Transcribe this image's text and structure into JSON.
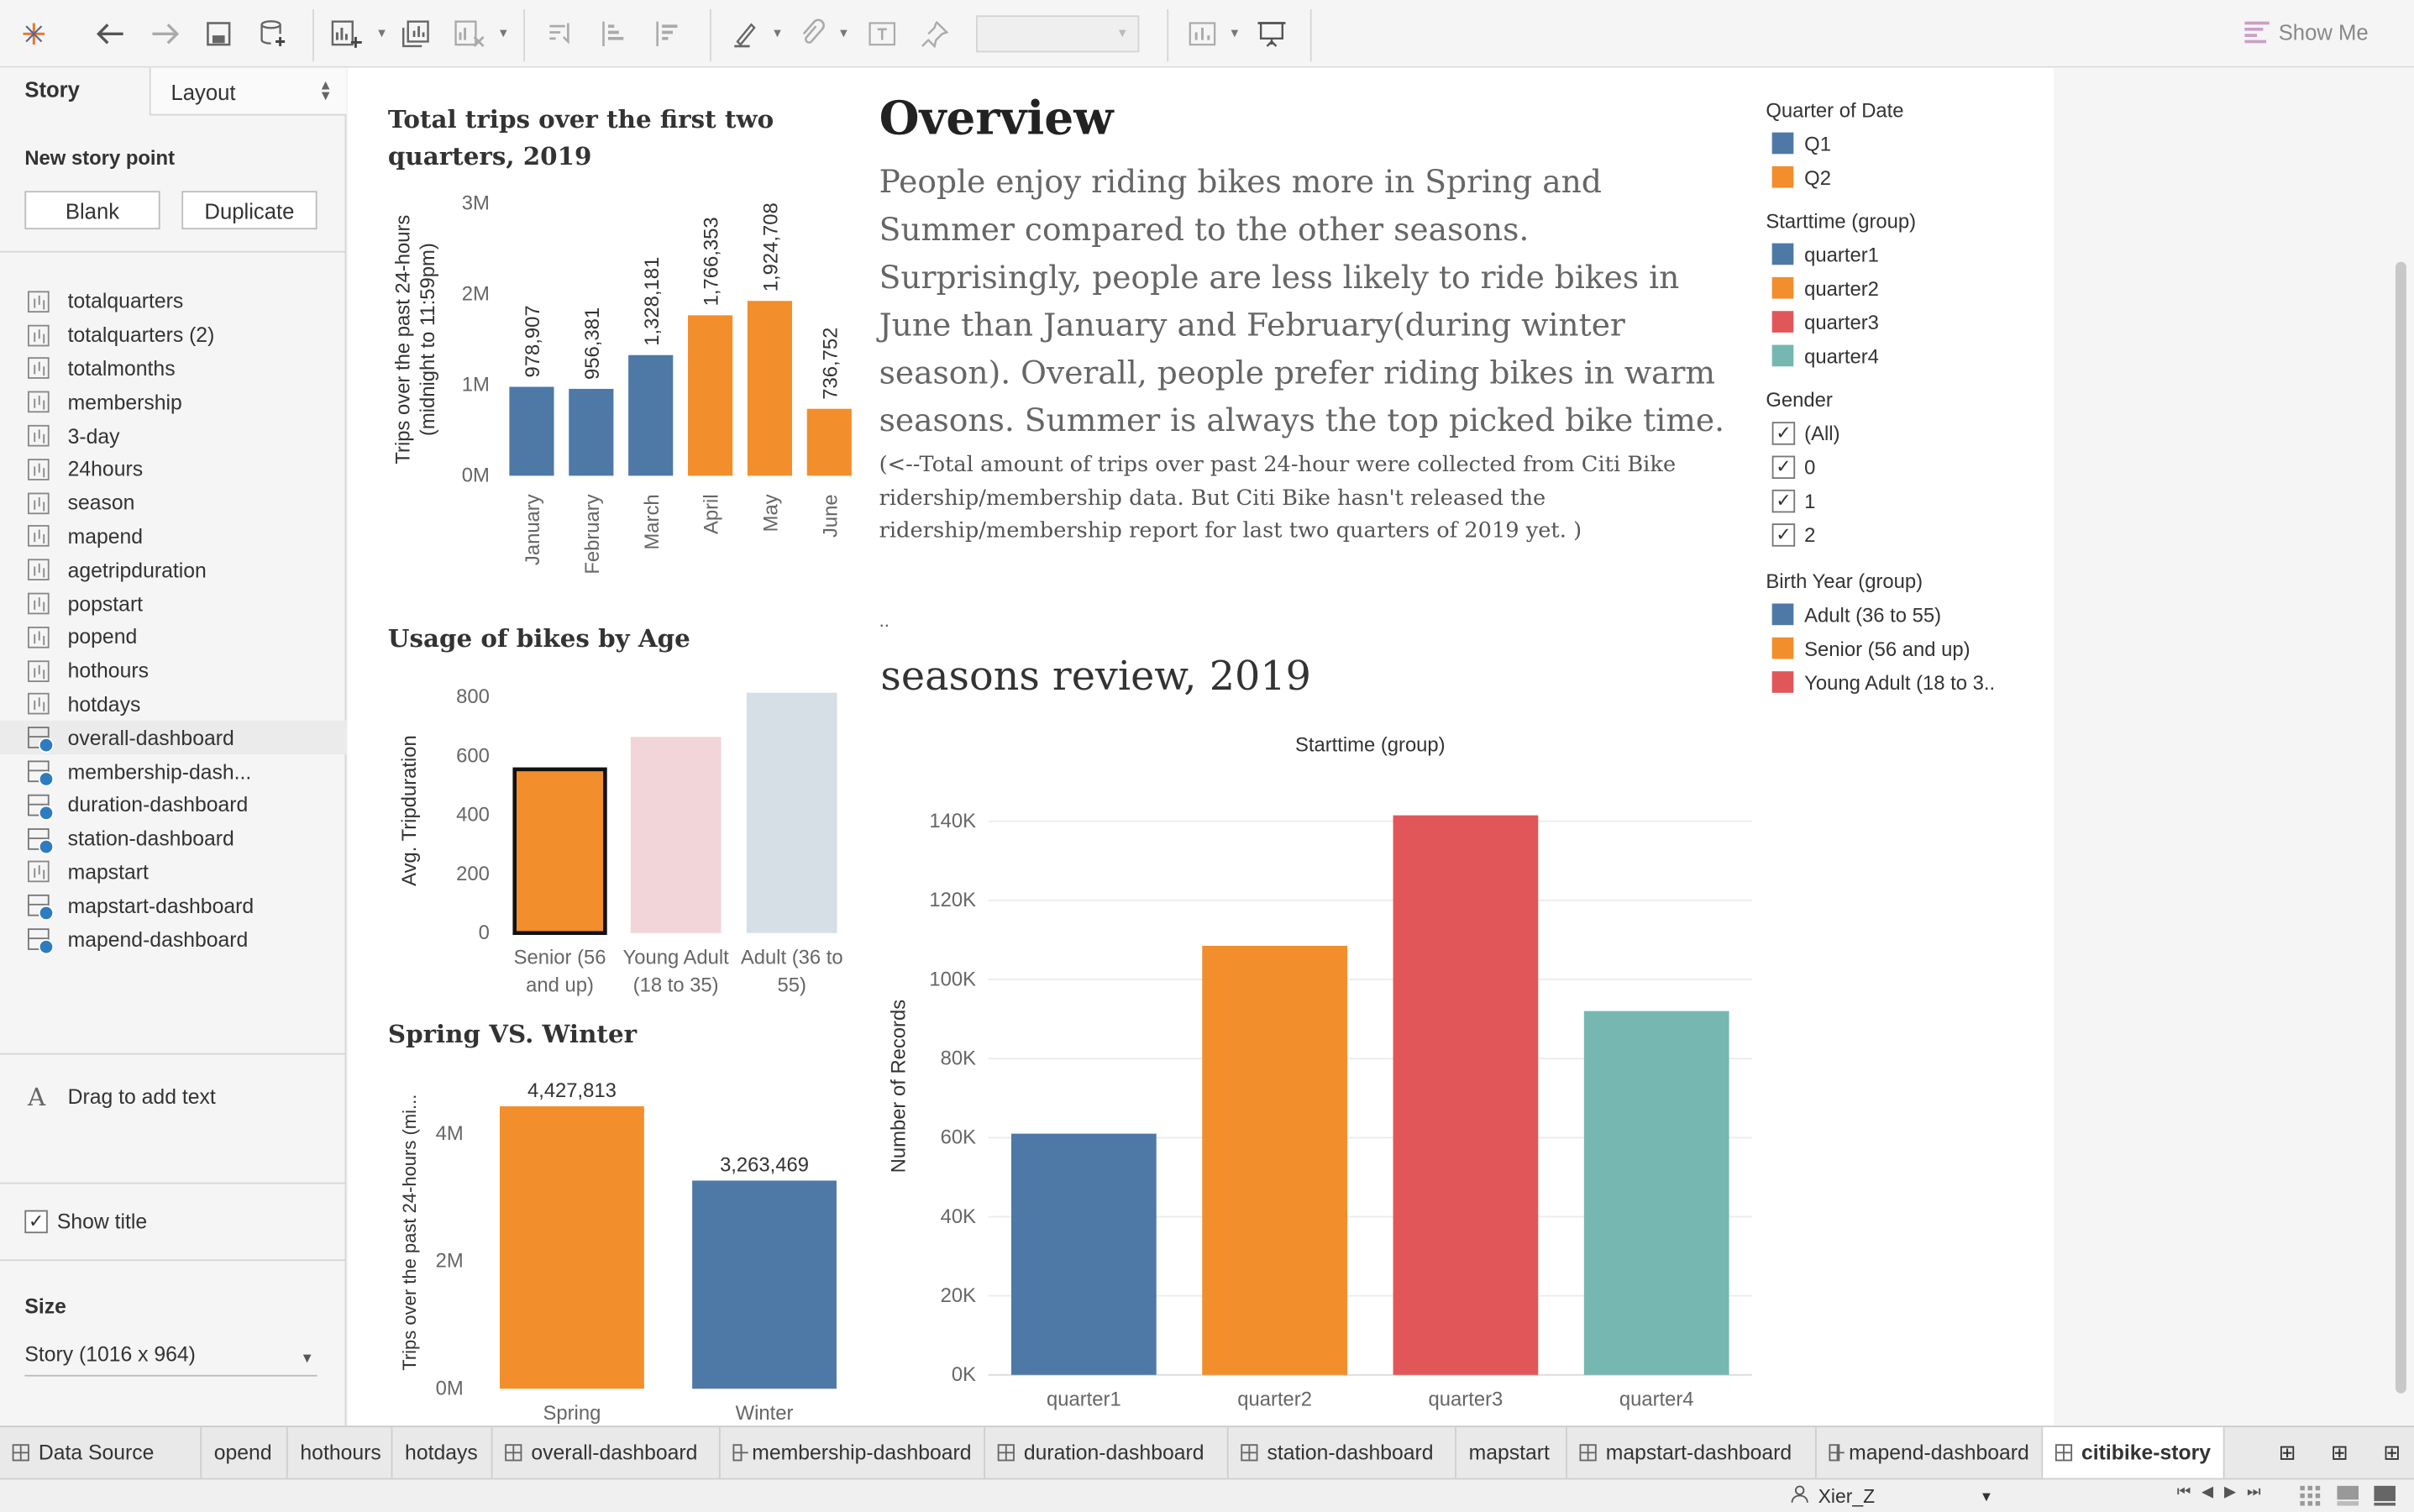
{
  "toolbar": {
    "icons": [
      "tableau-logo-icon",
      "back-icon",
      "forward-icon",
      "save-icon",
      "new-data-source-icon",
      "new-worksheet-icon",
      "duplicate-sheet-icon",
      "clear-sheet-icon",
      "swap-icon",
      "sort-asc-icon",
      "sort-desc-icon",
      "highlight-icon",
      "group-icon",
      "label-icon",
      "pin-icon",
      "fit-icon",
      "presentation-icon"
    ],
    "show_me_label": "Show Me"
  },
  "sidebar": {
    "tab_story": "Story",
    "tab_layout": "Layout",
    "new_story_point": "New story point",
    "blank_button": "Blank",
    "duplicate_button": "Duplicate",
    "sheets": [
      {
        "label": "totalquarters",
        "kind": "chart"
      },
      {
        "label": "totalquarters (2)",
        "kind": "chart"
      },
      {
        "label": "totalmonths",
        "kind": "chart"
      },
      {
        "label": "membership",
        "kind": "chart"
      },
      {
        "label": "3-day",
        "kind": "chart"
      },
      {
        "label": "24hours",
        "kind": "chart"
      },
      {
        "label": "season",
        "kind": "chart"
      },
      {
        "label": "mapend",
        "kind": "chart"
      },
      {
        "label": "agetripduration",
        "kind": "chart"
      },
      {
        "label": "popstart",
        "kind": "chart"
      },
      {
        "label": "popend",
        "kind": "chart"
      },
      {
        "label": "hothours",
        "kind": "chart"
      },
      {
        "label": "hotdays",
        "kind": "chart"
      },
      {
        "label": "overall-dashboard",
        "kind": "dashboard"
      },
      {
        "label": "membership-dash...",
        "kind": "dashboard"
      },
      {
        "label": "duration-dashboard",
        "kind": "dashboard"
      },
      {
        "label": "station-dashboard",
        "kind": "dashboard"
      },
      {
        "label": "mapstart",
        "kind": "chart"
      },
      {
        "label": "mapstart-dashboard",
        "kind": "dashboard"
      },
      {
        "label": "mapend-dashboard",
        "kind": "dashboard"
      }
    ],
    "drag_text": "Drag to add text",
    "show_title": "Show title",
    "size_label": "Size",
    "size_value": "Story (1016 x 964)"
  },
  "dashboard": {
    "trips_title": "Total trips over the first two quarters, 2019",
    "age_title": "Usage of bikes by Age",
    "spring_title": "Spring VS. Winter",
    "overview_heading": "Overview",
    "overview_body": "People enjoy riding bikes more in Spring and Summer compared to the other seasons. Surprisingly, people are less likely to ride bikes in June than January and February(during winter season). Overall, people prefer riding bikes in warm seasons. Summer is always the top picked bike time.",
    "overview_note": "(<--Total amount of trips over past 24-hour were collected from Citi Bike ridership/membership data. But Citi Bike hasn't released the ridership/membership report for last two quarters of 2019 yet. )",
    "dots": "..",
    "seasons_heading": "seasons review, 2019"
  },
  "legends": {
    "quarter": {
      "title": "Quarter of Date",
      "items": [
        {
          "label": "Q1",
          "color": "#4e79a7"
        },
        {
          "label": "Q2",
          "color": "#f28e2b"
        }
      ]
    },
    "starttime": {
      "title": "Starttime (group)",
      "items": [
        {
          "label": "quarter1",
          "color": "#4e79a7"
        },
        {
          "label": "quarter2",
          "color": "#f28e2b"
        },
        {
          "label": "quarter3",
          "color": "#e15759"
        },
        {
          "label": "quarter4",
          "color": "#76b7b2"
        }
      ]
    },
    "gender": {
      "title": "Gender",
      "items": [
        {
          "label": "(All)",
          "checked": true
        },
        {
          "label": "0",
          "checked": true
        },
        {
          "label": "1",
          "checked": true
        },
        {
          "label": "2",
          "checked": true
        }
      ]
    },
    "birth": {
      "title": "Birth Year (group)",
      "items": [
        {
          "label": "Adult (36 to 55)",
          "color": "#4e79a7"
        },
        {
          "label": "Senior (56 and up)",
          "color": "#f28e2b"
        },
        {
          "label": "Young Adult (18 to 3..",
          "color": "#e15759"
        }
      ]
    }
  },
  "chart_data": [
    {
      "type": "bar",
      "title": "Total trips over the first two quarters, 2019",
      "ylabel": "Trips over the past 24-hours (midnight to 11:59pm)",
      "categories": [
        "January",
        "February",
        "March",
        "April",
        "May",
        "June"
      ],
      "values": [
        978907,
        956381,
        1328181,
        1766353,
        1924708,
        736752
      ],
      "data_labels": [
        "978,907",
        "956,381",
        "1,328,181",
        "1,766,353",
        "1,924,708",
        "736,752"
      ],
      "colors": [
        "#4e79a7",
        "#4e79a7",
        "#4e79a7",
        "#f28e2b",
        "#f28e2b",
        "#f28e2b"
      ],
      "yticks": [
        "0M",
        "1M",
        "2M",
        "3M"
      ],
      "ylim": [
        0,
        3000000
      ],
      "grid": false
    },
    {
      "type": "bar",
      "title": "Usage of bikes by Age",
      "ylabel": "Avg. Tripduration",
      "categories": [
        [
          "Senior (56",
          "and up)"
        ],
        [
          "Young Adult",
          "(18 to 35)"
        ],
        [
          "Adult (36 to",
          "55)"
        ]
      ],
      "values": [
        555,
        665,
        815
      ],
      "colors": [
        "#f28e2b",
        "#f1d5d8",
        "#d6dfe6"
      ],
      "highlighted": 0,
      "yticks": [
        "0",
        "200",
        "400",
        "600",
        "800"
      ],
      "ylim": [
        0,
        830
      ],
      "grid": false
    },
    {
      "type": "bar",
      "title": "Spring VS. Winter",
      "ylabel": "Trips over the past 24-hours (mi...",
      "categories": [
        "Spring",
        "Winter"
      ],
      "values": [
        4427813,
        3263469
      ],
      "data_labels": [
        "4,427,813",
        "3,263,469"
      ],
      "colors": [
        "#f28e2b",
        "#4e79a7"
      ],
      "yticks": [
        "0M",
        "2M",
        "4M"
      ],
      "ylim": [
        0,
        4900000
      ],
      "grid": false
    },
    {
      "type": "bar",
      "title": "Starttime (group)",
      "ylabel": "Number of Records",
      "categories": [
        "quarter1",
        "quarter2",
        "quarter3",
        "quarter4"
      ],
      "values": [
        61000,
        108500,
        141500,
        92000
      ],
      "colors": [
        "#4e79a7",
        "#f28e2b",
        "#e15759",
        "#76b7b2"
      ],
      "yticks": [
        "0K",
        "20K",
        "40K",
        "60K",
        "80K",
        "100K",
        "120K",
        "140K"
      ],
      "ylim": [
        0,
        146000
      ],
      "grid": true
    }
  ],
  "bottom_tabs": [
    {
      "label": "Data Source",
      "icon": "data-source-icon"
    },
    {
      "label": "opend"
    },
    {
      "label": "hothours"
    },
    {
      "label": "hotdays"
    },
    {
      "label": "overall-dashboard",
      "icon": "dashboard-icon"
    },
    {
      "label": "membership-dashboard",
      "icon": "dashboard-icon"
    },
    {
      "label": "duration-dashboard",
      "icon": "dashboard-icon"
    },
    {
      "label": "station-dashboard",
      "icon": "dashboard-icon"
    },
    {
      "label": "mapstart"
    },
    {
      "label": "mapstart-dashboard",
      "icon": "dashboard-icon"
    },
    {
      "label": "mapend-dashboard",
      "icon": "dashboard-icon"
    },
    {
      "label": "citibike-story",
      "icon": "story-icon",
      "active": true
    }
  ],
  "status": {
    "user": "Xier_Z"
  }
}
